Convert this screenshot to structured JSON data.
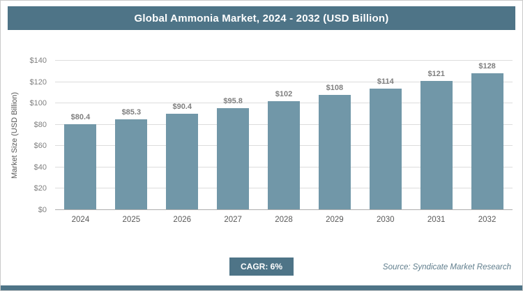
{
  "title": "Global Ammonia Market, 2024 - 2032 (USD Billion)",
  "ylabel": "Market Size (USD Billion)",
  "footer": {
    "cagr_label": "CAGR: 6%",
    "source": "Source: Syndicate Market Research"
  },
  "colors": {
    "accent": "#4e7487",
    "bar": "#7197a8",
    "grid": "#dcdcdc",
    "value_label": "#7f7f7f",
    "axis_label": "#595959"
  },
  "chart_data": {
    "type": "bar",
    "title": "Global Ammonia Market, 2024 - 2032 (USD Billion)",
    "xlabel": "",
    "ylabel": "Market Size (USD Billion)",
    "categories": [
      "2024",
      "2025",
      "2026",
      "2027",
      "2028",
      "2029",
      "2030",
      "2031",
      "2032"
    ],
    "values": [
      80.4,
      85.3,
      90.4,
      95.8,
      102,
      108,
      114,
      121,
      128
    ],
    "data_labels": [
      "$80.4",
      "$85.3",
      "$90.4",
      "$95.8",
      "$102",
      "$108",
      "$114",
      "$121",
      "$128"
    ],
    "ylim": [
      0,
      140
    ],
    "ytick_step": 20,
    "yticks": [
      "$0",
      "$20",
      "$40",
      "$60",
      "$80",
      "$100",
      "$120",
      "$140"
    ],
    "grid": true,
    "legend": false,
    "annotations": [
      "CAGR: 6%",
      "Source: Syndicate Market Research"
    ]
  }
}
